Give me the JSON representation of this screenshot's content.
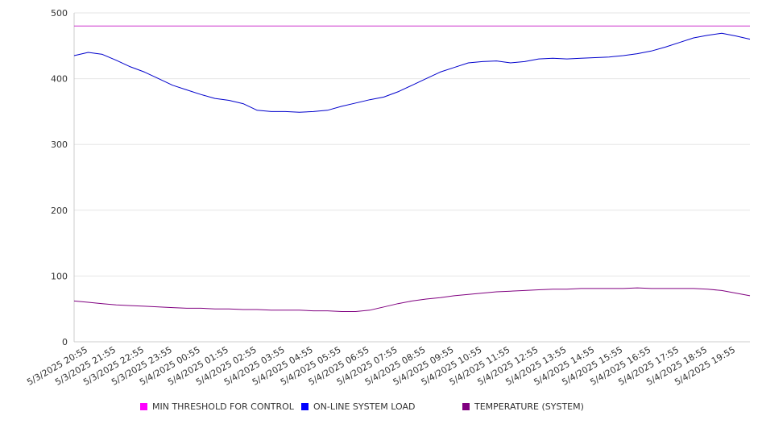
{
  "chart_data": {
    "type": "line",
    "title": "",
    "xlabel": "",
    "ylabel": "",
    "ylim": [
      0,
      500
    ],
    "y_ticks": [
      0,
      100,
      200,
      300,
      400,
      500
    ],
    "grid": "horizontal",
    "legend_position": "bottom",
    "x_tick_labels": [
      "5/3/2025 20:55",
      "5/3/2025 21:55",
      "5/3/2025 22:55",
      "5/3/2025 23:55",
      "5/4/2025 00:55",
      "5/4/2025 01:55",
      "5/4/2025 02:55",
      "5/4/2025 03:55",
      "5/4/2025 04:55",
      "5/4/2025 05:55",
      "5/4/2025 06:55",
      "5/4/2025 07:55",
      "5/4/2025 08:55",
      "5/4/2025 09:55",
      "5/4/2025 10:55",
      "5/4/2025 11:55",
      "5/4/2025 12:55",
      "5/4/2025 13:55",
      "5/4/2025 14:55",
      "5/4/2025 15:55",
      "5/4/2025 16:55",
      "5/4/2025 17:55",
      "5/4/2025 18:55",
      "5/4/2025 19:55"
    ],
    "x": [
      "5/3/2025 20:25",
      "5/3/2025 20:55",
      "5/3/2025 21:25",
      "5/3/2025 21:55",
      "5/3/2025 22:25",
      "5/3/2025 22:55",
      "5/3/2025 23:25",
      "5/3/2025 23:55",
      "5/4/2025 00:25",
      "5/4/2025 00:55",
      "5/4/2025 01:25",
      "5/4/2025 01:55",
      "5/4/2025 02:25",
      "5/4/2025 02:55",
      "5/4/2025 03:25",
      "5/4/2025 03:55",
      "5/4/2025 04:25",
      "5/4/2025 04:55",
      "5/4/2025 05:25",
      "5/4/2025 05:55",
      "5/4/2025 06:25",
      "5/4/2025 06:55",
      "5/4/2025 07:25",
      "5/4/2025 07:55",
      "5/4/2025 08:25",
      "5/4/2025 08:55",
      "5/4/2025 09:25",
      "5/4/2025 09:55",
      "5/4/2025 10:25",
      "5/4/2025 10:55",
      "5/4/2025 11:25",
      "5/4/2025 11:55",
      "5/4/2025 12:25",
      "5/4/2025 12:55",
      "5/4/2025 13:25",
      "5/4/2025 13:55",
      "5/4/2025 14:25",
      "5/4/2025 14:55",
      "5/4/2025 15:25",
      "5/4/2025 15:55",
      "5/4/2025 16:25",
      "5/4/2025 16:55",
      "5/4/2025 17:25",
      "5/4/2025 17:55",
      "5/4/2025 18:25",
      "5/4/2025 18:55",
      "5/4/2025 19:25",
      "5/4/2025 19:55",
      "5/4/2025 20:25"
    ],
    "series": [
      {
        "name": "MIN THRESHOLD FOR CONTROL",
        "color": "#cc33cc",
        "values": [
          480,
          480,
          480,
          480,
          480,
          480,
          480,
          480,
          480,
          480,
          480,
          480,
          480,
          480,
          480,
          480,
          480,
          480,
          480,
          480,
          480,
          480,
          480,
          480,
          480,
          480,
          480,
          480,
          480,
          480,
          480,
          480,
          480,
          480,
          480,
          480,
          480,
          480,
          480,
          480,
          480,
          480,
          480,
          480,
          480,
          480,
          480,
          480,
          480
        ]
      },
      {
        "name": "ON-LINE SYSTEM LOAD",
        "color": "#0000cc",
        "values": [
          435,
          440,
          437,
          428,
          418,
          410,
          400,
          390,
          383,
          376,
          370,
          367,
          362,
          352,
          350,
          350,
          349,
          350,
          352,
          358,
          363,
          368,
          372,
          380,
          390,
          400,
          410,
          417,
          424,
          426,
          427,
          424,
          426,
          430,
          431,
          430,
          431,
          432,
          433,
          435,
          438,
          442,
          448,
          455,
          462,
          466,
          469,
          465,
          460
        ]
      },
      {
        "name": "TEMPERATURE (SYSTEM)",
        "color": "#800080",
        "values": [
          62,
          60,
          58,
          56,
          55,
          54,
          53,
          52,
          51,
          51,
          50,
          50,
          49,
          49,
          48,
          48,
          48,
          47,
          47,
          46,
          46,
          48,
          53,
          58,
          62,
          65,
          67,
          70,
          72,
          74,
          76,
          77,
          78,
          79,
          80,
          80,
          81,
          81,
          81,
          81,
          82,
          81,
          81,
          81,
          81,
          80,
          78,
          74,
          70
        ]
      }
    ]
  }
}
